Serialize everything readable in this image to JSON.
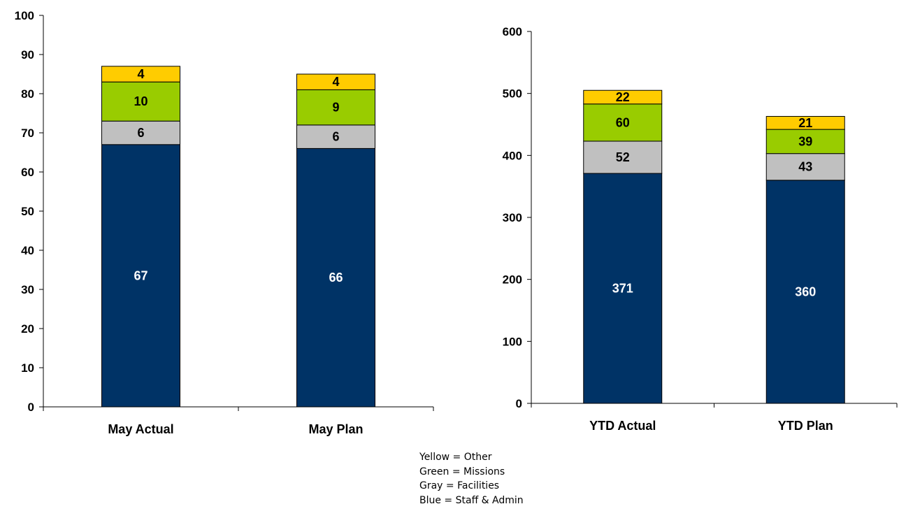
{
  "chart_data": [
    {
      "type": "bar",
      "stacked": true,
      "categories": [
        "May Actual",
        "May Plan"
      ],
      "series": [
        {
          "values": [
            67,
            66
          ],
          "color": "#003366",
          "label_color": "#ffffff"
        },
        {
          "values": [
            6,
            6
          ],
          "color": "#c0c0c0",
          "label_color": "#000000"
        },
        {
          "values": [
            10,
            9
          ],
          "color": "#99cc00",
          "label_color": "#000000"
        },
        {
          "values": [
            4,
            4
          ],
          "color": "#ffcc00",
          "label_color": "#000000"
        }
      ],
      "ylim": [
        0,
        100
      ],
      "yticks": [
        0,
        10,
        20,
        30,
        40,
        50,
        60,
        70,
        80,
        90,
        100
      ],
      "grid": false
    },
    {
      "type": "bar",
      "stacked": true,
      "categories": [
        "YTD Actual",
        "YTD Plan"
      ],
      "series": [
        {
          "values": [
            371,
            360
          ],
          "color": "#003366",
          "label_color": "#ffffff"
        },
        {
          "values": [
            52,
            43
          ],
          "color": "#c0c0c0",
          "label_color": "#000000"
        },
        {
          "values": [
            60,
            39
          ],
          "color": "#99cc00",
          "label_color": "#000000"
        },
        {
          "values": [
            22,
            21
          ],
          "color": "#ffcc00",
          "label_color": "#000000"
        }
      ],
      "ylim": [
        0,
        600
      ],
      "yticks": [
        0,
        100,
        200,
        300,
        400,
        500,
        600
      ],
      "grid": false
    }
  ],
  "legend_lines": [
    "Yellow = Other",
    "Green = Missions",
    "Gray = Facilities",
    "Blue = Staff & Admin"
  ]
}
